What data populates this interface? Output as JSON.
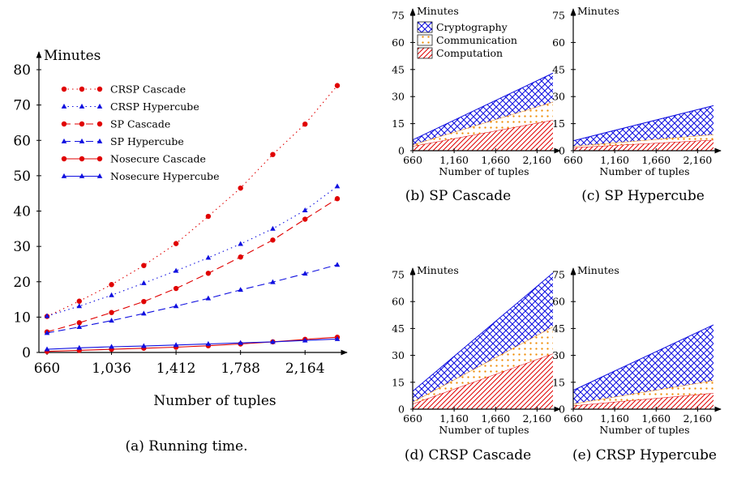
{
  "chart_data": [
    {
      "id": "a",
      "type": "line",
      "caption": "(a) Running time.",
      "ylabel": "Minutes",
      "xlabel": "Number of tuples",
      "x": [
        660,
        848,
        1036,
        1224,
        1412,
        1600,
        1788,
        1976,
        2164,
        2352
      ],
      "x_ticks": [
        660,
        1036,
        1412,
        1788,
        2164
      ],
      "x_tick_labels": [
        "660",
        "1,036",
        "1,412",
        "1,788",
        "2,164"
      ],
      "ylim": [
        0,
        80
      ],
      "y_ticks": [
        0,
        10,
        20,
        30,
        40,
        50,
        60,
        70,
        80
      ],
      "legend_position": "top-left",
      "series": [
        {
          "name": "CRSP Cascade",
          "color": "#e00000",
          "dash": "1.5,4",
          "marker": "circle",
          "values": [
            10.2,
            14.5,
            19.2,
            24.6,
            30.8,
            38.5,
            46.5,
            56,
            64.6,
            75.5
          ]
        },
        {
          "name": "CRSP Hypercube",
          "color": "#1010e0",
          "dash": "1.5,4",
          "marker": "triangle",
          "values": [
            10.3,
            13.1,
            16.2,
            19.6,
            23.1,
            26.8,
            30.7,
            35,
            40.2,
            47
          ]
        },
        {
          "name": "SP Cascade",
          "color": "#e00000",
          "dash": "9,5",
          "marker": "circle",
          "values": [
            5.8,
            8.4,
            11.3,
            14.4,
            18.1,
            22.4,
            27,
            31.8,
            37.7,
            43.5
          ]
        },
        {
          "name": "SP Hypercube",
          "color": "#1010e0",
          "dash": "9,5",
          "marker": "triangle",
          "values": [
            5.5,
            7.2,
            9.0,
            11.0,
            13.1,
            15.3,
            17.7,
            19.9,
            22.3,
            24.8
          ]
        },
        {
          "name": "Nosecure Cascade",
          "color": "#e00000",
          "dash": "",
          "marker": "circle",
          "values": [
            0.3,
            0.6,
            0.9,
            1.2,
            1.5,
            1.9,
            2.4,
            3.0,
            3.7,
            4.3
          ]
        },
        {
          "name": "Nosecure Hypercube",
          "color": "#1010e0",
          "dash": "",
          "marker": "triangle",
          "values": [
            0.9,
            1.3,
            1.6,
            1.8,
            2.1,
            2.4,
            2.7,
            3.0,
            3.4,
            3.8
          ]
        }
      ]
    },
    {
      "id": "b",
      "type": "area",
      "stacked": true,
      "caption": "(b) SP Cascade",
      "ylabel": "Minutes",
      "xlabel": "Number of tuples",
      "x": [
        660,
        2352
      ],
      "x_ticks": [
        660,
        1160,
        1660,
        2160
      ],
      "x_tick_labels": [
        "660",
        "1,160",
        "1,660",
        "2,160"
      ],
      "ylim": [
        0,
        75
      ],
      "y_ticks": [
        0,
        15,
        30,
        45,
        60,
        75
      ],
      "legend_position": "top-left",
      "series": [
        {
          "name": "Computation",
          "values": [
            2.5,
            17
          ]
        },
        {
          "name": "Communication",
          "values": [
            0.8,
            10
          ]
        },
        {
          "name": "Cryptography",
          "values": [
            2.7,
            16
          ]
        }
      ]
    },
    {
      "id": "c",
      "type": "area",
      "stacked": true,
      "caption": "(c) SP Hypercube",
      "ylabel": "Minutes",
      "xlabel": "Number of tuples",
      "x": [
        660,
        2352
      ],
      "x_ticks": [
        660,
        1160,
        1660,
        2160
      ],
      "x_tick_labels": [
        "660",
        "1,160",
        "1,660",
        "2,160"
      ],
      "ylim": [
        0,
        75
      ],
      "y_ticks": [
        0,
        15,
        30,
        45,
        60,
        75
      ],
      "series": [
        {
          "name": "Computation",
          "values": [
            1.8,
            6
          ]
        },
        {
          "name": "Communication",
          "values": [
            0.7,
            3
          ]
        },
        {
          "name": "Cryptography",
          "values": [
            3.0,
            16
          ]
        }
      ]
    },
    {
      "id": "d",
      "type": "area",
      "stacked": true,
      "caption": "(d) CRSP Cascade",
      "ylabel": "Minutes",
      "xlabel": "Number of tuples",
      "x": [
        660,
        2352
      ],
      "x_ticks": [
        660,
        1160,
        1660,
        2160
      ],
      "x_tick_labels": [
        "660",
        "1,160",
        "1,660",
        "2,160"
      ],
      "ylim": [
        0,
        75
      ],
      "y_ticks": [
        0,
        15,
        30,
        45,
        60,
        75
      ],
      "series": [
        {
          "name": "Computation",
          "values": [
            3,
            31
          ]
        },
        {
          "name": "Communication",
          "values": [
            1,
            15
          ]
        },
        {
          "name": "Cryptography",
          "values": [
            6,
            30
          ]
        }
      ]
    },
    {
      "id": "e",
      "type": "area",
      "stacked": true,
      "caption": "(e) CRSP Hypercube",
      "ylabel": "Minutes",
      "xlabel": "Number of tuples",
      "x": [
        660,
        2352
      ],
      "x_ticks": [
        660,
        1160,
        1660,
        2160
      ],
      "x_tick_labels": [
        "660",
        "1,160",
        "1,660",
        "2,160"
      ],
      "ylim": [
        0,
        75
      ],
      "y_ticks": [
        0,
        15,
        30,
        45,
        60,
        75
      ],
      "series": [
        {
          "name": "Computation",
          "values": [
            2,
            9
          ]
        },
        {
          "name": "Communication",
          "values": [
            1,
            7
          ]
        },
        {
          "name": "Cryptography",
          "values": [
            7.5,
            31
          ]
        }
      ]
    }
  ],
  "colors": {
    "red": "#e00000",
    "blue": "#1010e0",
    "orange": "#f08a00"
  }
}
